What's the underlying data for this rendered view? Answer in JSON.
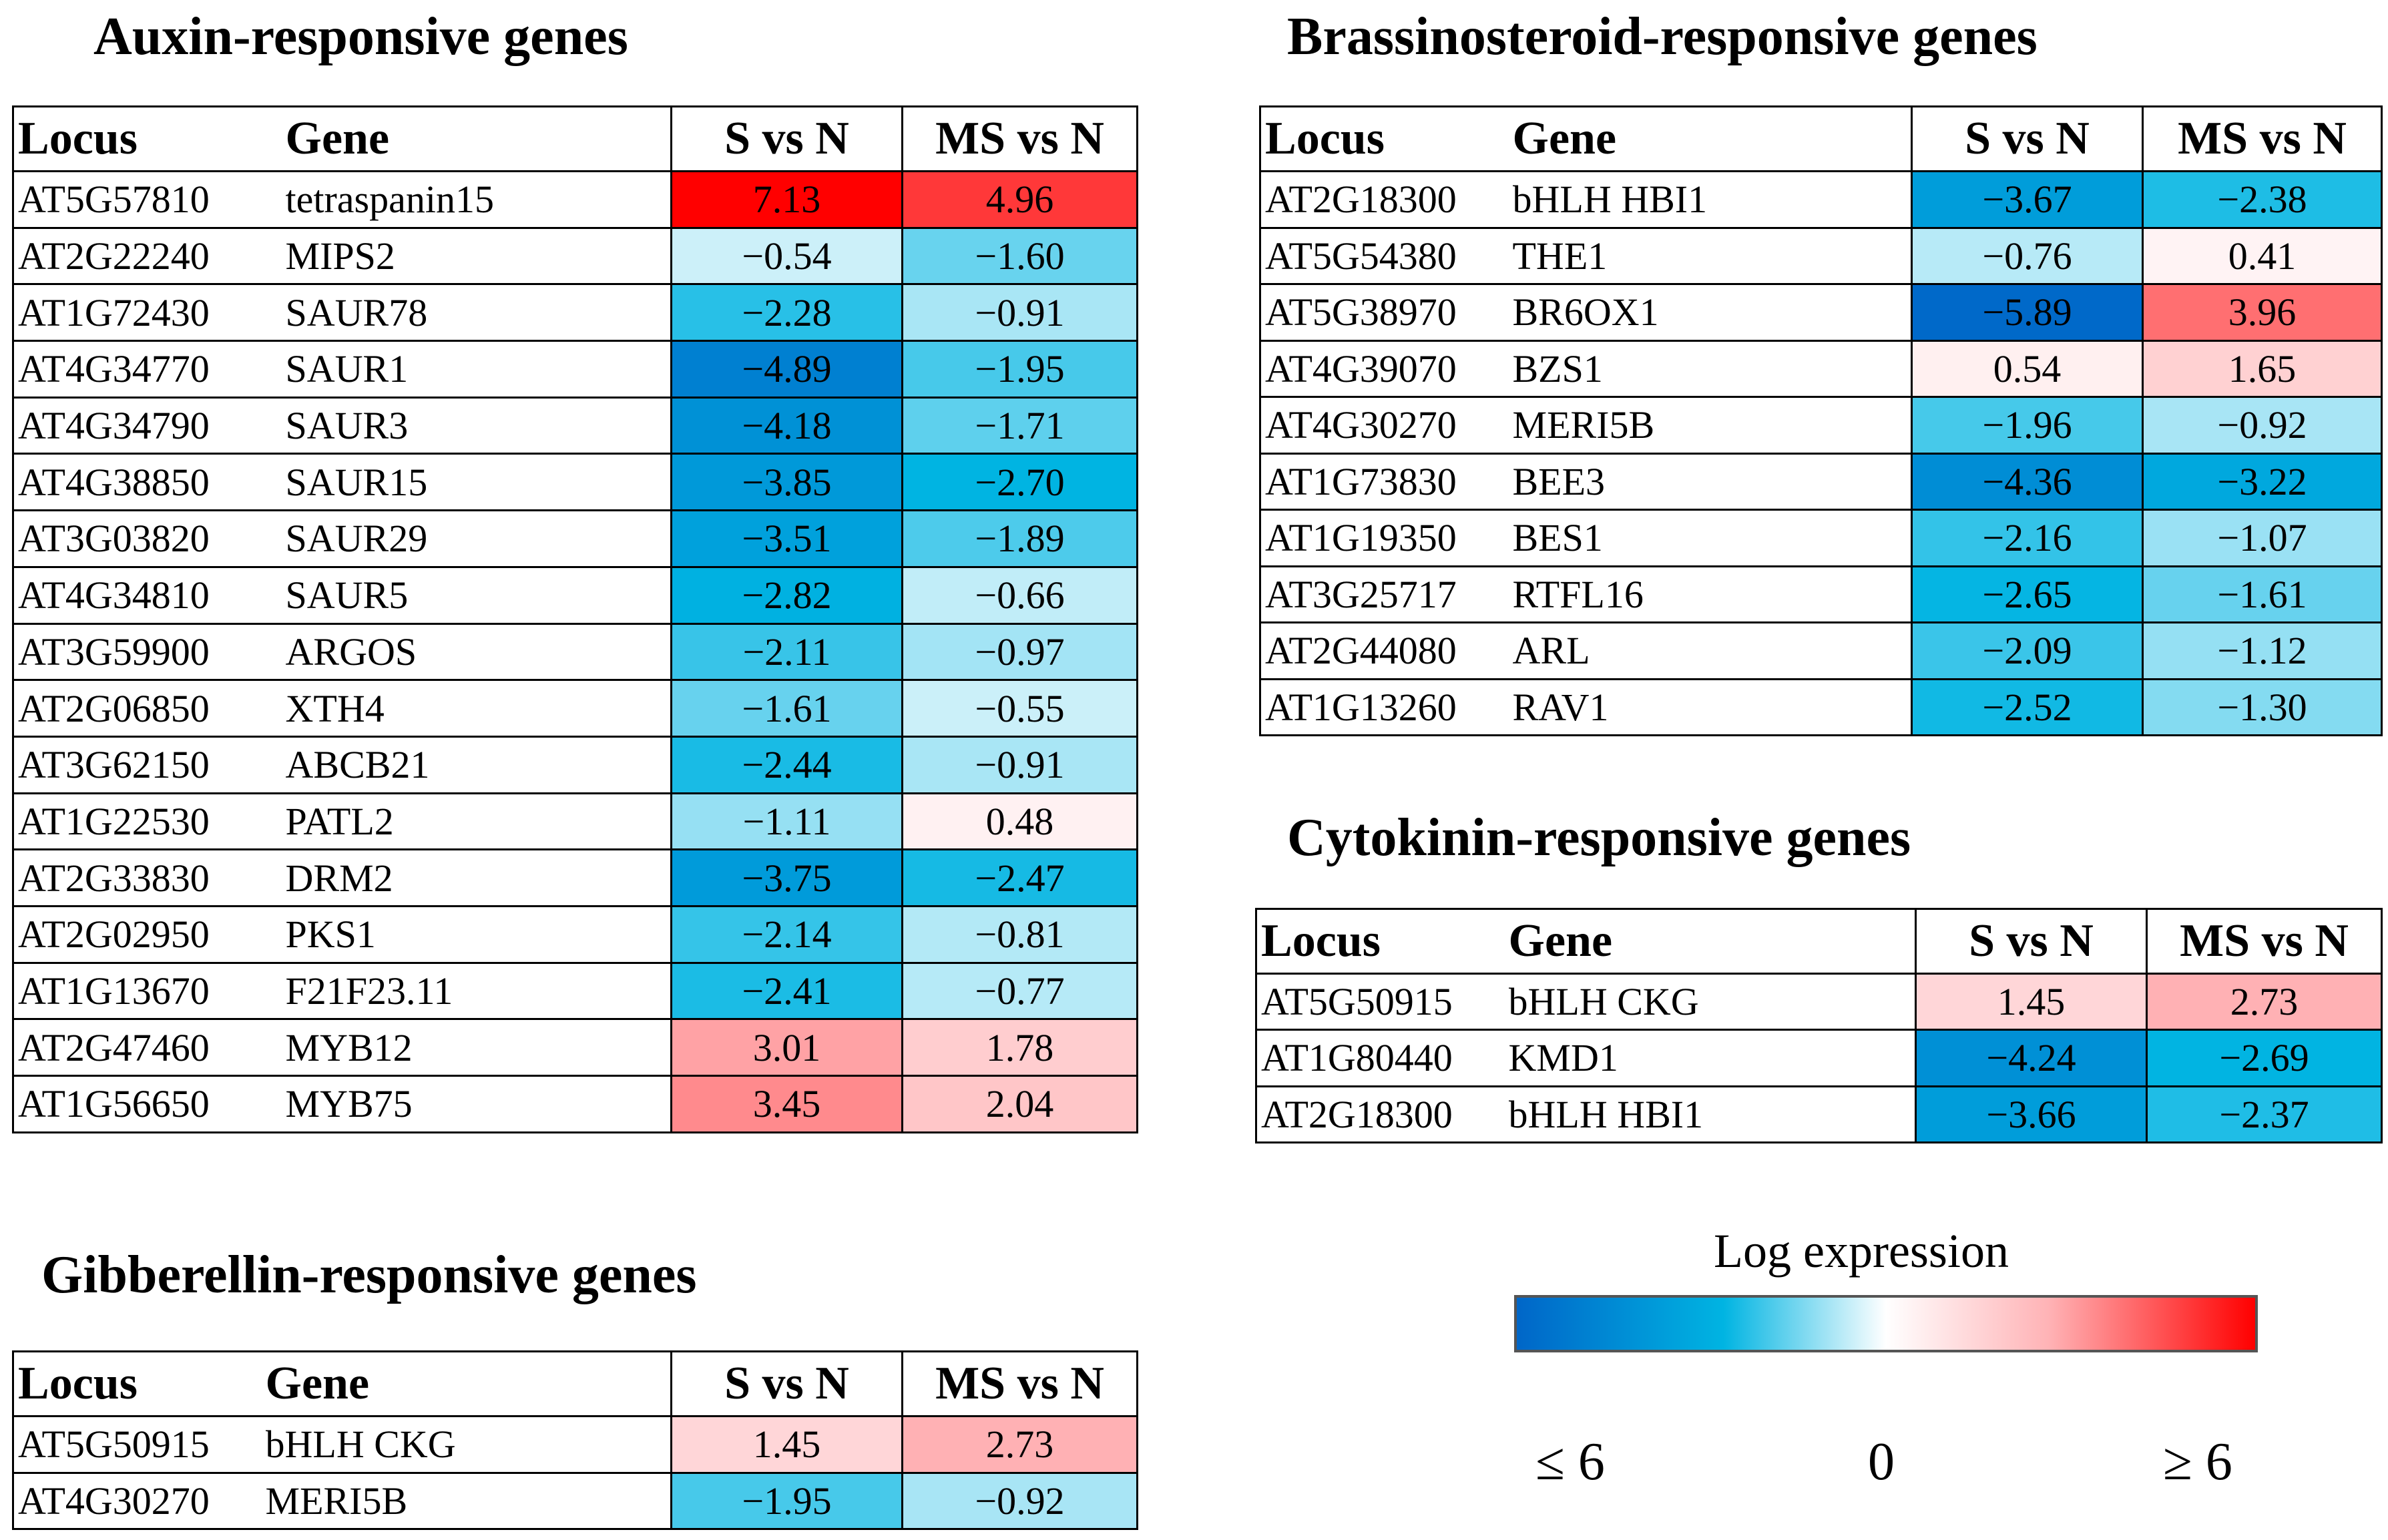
{
  "chart_data": [
    {
      "type": "heatmap",
      "title": "Auxin-responsive genes",
      "columns": [
        "Locus",
        "Gene",
        "S vs N",
        "MS vs N"
      ],
      "rows": [
        {
          "locus": "AT5G57810",
          "gene": "tetraspanin15",
          "s_vs_n": "7.13",
          "ms_vs_n": "4.96"
        },
        {
          "locus": "AT2G22240",
          "gene": "MIPS2",
          "s_vs_n": "−0.54",
          "ms_vs_n": "−1.60"
        },
        {
          "locus": "AT1G72430",
          "gene": "SAUR78",
          "s_vs_n": "−2.28",
          "ms_vs_n": "−0.91"
        },
        {
          "locus": "AT4G34770",
          "gene": "SAUR1",
          "s_vs_n": "−4.89",
          "ms_vs_n": "−1.95"
        },
        {
          "locus": "AT4G34790",
          "gene": "SAUR3",
          "s_vs_n": "−4.18",
          "ms_vs_n": "−1.71"
        },
        {
          "locus": "AT4G38850",
          "gene": "SAUR15",
          "s_vs_n": "−3.85",
          "ms_vs_n": "−2.70"
        },
        {
          "locus": "AT3G03820",
          "gene": "SAUR29",
          "s_vs_n": "−3.51",
          "ms_vs_n": "−1.89"
        },
        {
          "locus": "AT4G34810",
          "gene": "SAUR5",
          "s_vs_n": "−2.82",
          "ms_vs_n": "−0.66"
        },
        {
          "locus": "AT3G59900",
          "gene": "ARGOS",
          "s_vs_n": "−2.11",
          "ms_vs_n": "−0.97"
        },
        {
          "locus": "AT2G06850",
          "gene": "XTH4",
          "s_vs_n": "−1.61",
          "ms_vs_n": "−0.55"
        },
        {
          "locus": "AT3G62150",
          "gene": "ABCB21",
          "s_vs_n": "−2.44",
          "ms_vs_n": "−0.91"
        },
        {
          "locus": "AT1G22530",
          "gene": "PATL2",
          "s_vs_n": "−1.11",
          "ms_vs_n": "0.48"
        },
        {
          "locus": "AT2G33830",
          "gene": "DRM2",
          "s_vs_n": "−3.75",
          "ms_vs_n": "−2.47"
        },
        {
          "locus": "AT2G02950",
          "gene": "PKS1",
          "s_vs_n": "−2.14",
          "ms_vs_n": "−0.81"
        },
        {
          "locus": "AT1G13670",
          "gene": "F21F23.11",
          "s_vs_n": "−2.41",
          "ms_vs_n": "−0.77"
        },
        {
          "locus": "AT2G47460",
          "gene": "MYB12",
          "s_vs_n": "3.01",
          "ms_vs_n": "1.78"
        },
        {
          "locus": "AT1G56650",
          "gene": "MYB75",
          "s_vs_n": "3.45",
          "ms_vs_n": "2.04"
        }
      ]
    },
    {
      "type": "heatmap",
      "title": "Brassinosteroid-responsive genes",
      "columns": [
        "Locus",
        "Gene",
        "S vs N",
        "MS vs N"
      ],
      "rows": [
        {
          "locus": "AT2G18300",
          "gene": "bHLH HBI1",
          "s_vs_n": "−3.67",
          "ms_vs_n": "−2.38"
        },
        {
          "locus": "AT5G54380",
          "gene": "THE1",
          "s_vs_n": "−0.76",
          "ms_vs_n": "0.41"
        },
        {
          "locus": "AT5G38970",
          "gene": "BR6OX1",
          "s_vs_n": "−5.89",
          "ms_vs_n": "3.96"
        },
        {
          "locus": "AT4G39070",
          "gene": "BZS1",
          "s_vs_n": "0.54",
          "ms_vs_n": "1.65"
        },
        {
          "locus": "AT4G30270",
          "gene": "MERI5B",
          "s_vs_n": "−1.96",
          "ms_vs_n": "−0.92"
        },
        {
          "locus": "AT1G73830",
          "gene": "BEE3",
          "s_vs_n": "−4.36",
          "ms_vs_n": "−3.22"
        },
        {
          "locus": "AT1G19350",
          "gene": "BES1",
          "s_vs_n": "−2.16",
          "ms_vs_n": "−1.07"
        },
        {
          "locus": "AT3G25717",
          "gene": "RTFL16",
          "s_vs_n": "−2.65",
          "ms_vs_n": "−1.61"
        },
        {
          "locus": "AT2G44080",
          "gene": "ARL",
          "s_vs_n": "−2.09",
          "ms_vs_n": "−1.12"
        },
        {
          "locus": "AT1G13260",
          "gene": "RAV1",
          "s_vs_n": "−2.52",
          "ms_vs_n": "−1.30"
        }
      ]
    },
    {
      "type": "heatmap",
      "title": "Cytokinin-responsive genes",
      "columns": [
        "Locus",
        "Gene",
        "S vs N",
        "MS vs N"
      ],
      "rows": [
        {
          "locus": "AT5G50915",
          "gene": "bHLH CKG",
          "s_vs_n": "1.45",
          "ms_vs_n": "2.73"
        },
        {
          "locus": "AT1G80440",
          "gene": "KMD1",
          "s_vs_n": "−4.24",
          "ms_vs_n": "−2.69"
        },
        {
          "locus": "AT2G18300",
          "gene": "bHLH HBI1",
          "s_vs_n": "−3.66",
          "ms_vs_n": "−2.37"
        }
      ]
    },
    {
      "type": "heatmap",
      "title": "Gibberellin-responsive genes",
      "columns": [
        "Locus",
        "Gene",
        "S vs N",
        "MS vs N"
      ],
      "rows": [
        {
          "locus": "AT5G50915",
          "gene": "bHLH CKG",
          "s_vs_n": "1.45",
          "ms_vs_n": "2.73"
        },
        {
          "locus": "AT4G30270",
          "gene": "MERI5B",
          "s_vs_n": "−1.95",
          "ms_vs_n": "−0.92"
        }
      ]
    }
  ],
  "legend": {
    "title": "Log expression",
    "min_label": "≤ 6",
    "mid_label": "0",
    "max_label": "≥ 6",
    "scale_min": -6,
    "scale_max": 6,
    "colors": {
      "low": "#0066c8",
      "low_mid": "#00b4e2",
      "mid": "#ffffff",
      "high_mid": "#ffb3b6",
      "high": "#ff0000"
    }
  }
}
